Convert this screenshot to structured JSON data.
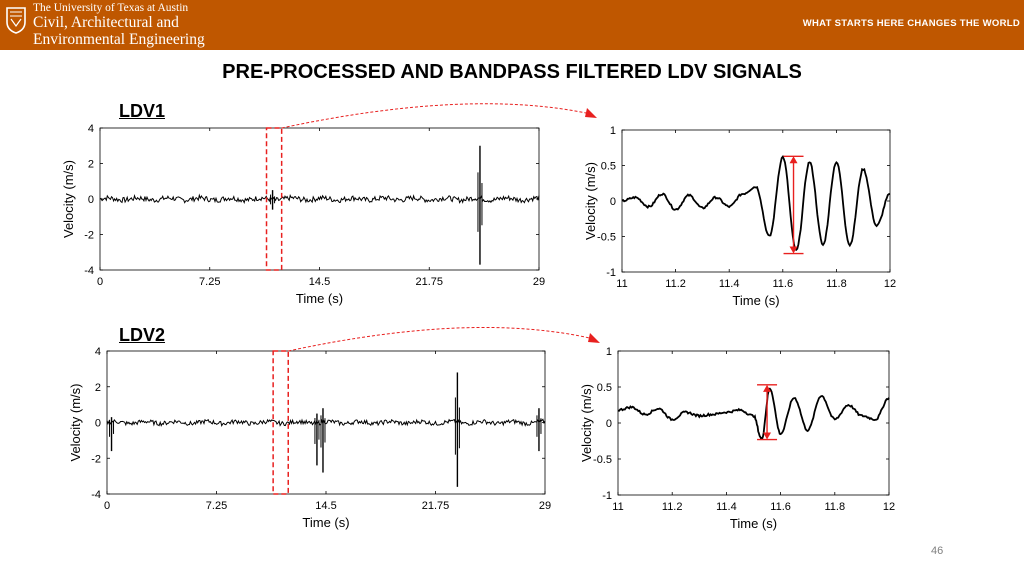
{
  "header": {
    "university": "The University of Texas at Austin",
    "department_line1": "Civil, Architectural and",
    "department_line2": "Environmental Engineering",
    "tagline": "WHAT STARTS HERE CHANGES THE WORLD",
    "logo": "ut-seal-icon",
    "brand_color": "#bf5700"
  },
  "slide": {
    "title": "PRE-PROCESSED AND BANDPASS FILTERED LDV SIGNALS",
    "page_number": "46"
  },
  "colors": {
    "signal": "#000000",
    "highlight": "#e8201f",
    "axis": "#000000"
  },
  "chart_data": [
    {
      "type": "line",
      "panel_label": "LDV1",
      "xlabel": "Time (s)",
      "ylabel": "Velocity (m/s)",
      "xlim": [
        0,
        29
      ],
      "ylim": [
        -4,
        4
      ],
      "x_ticks": [
        "0",
        "7.25",
        "14.5",
        "21.75",
        "29"
      ],
      "y_ticks": [
        "4",
        "2",
        "0",
        "-2",
        "-4"
      ],
      "highlight_window_x": [
        11,
        12
      ],
      "noise_amplitude": 0.15,
      "spikes": [
        {
          "x": 25.1,
          "max": 3.0,
          "min": -3.7
        },
        {
          "x": 11.4,
          "max": 0.5,
          "min": -0.6
        }
      ],
      "grid": false
    },
    {
      "type": "line",
      "panel_label": "LDV1 zoom",
      "xlabel": "Time (s)",
      "ylabel": "Velocity (m/s)",
      "xlim": [
        11,
        12
      ],
      "ylim": [
        -1,
        1
      ],
      "x_ticks": [
        "11",
        "11.2",
        "11.4",
        "11.6",
        "11.8",
        "12"
      ],
      "y_ticks": [
        "1",
        "0.5",
        "0",
        "-0.5",
        "-1"
      ],
      "x": [
        11.0,
        11.05,
        11.1,
        11.15,
        11.2,
        11.25,
        11.3,
        11.35,
        11.4,
        11.45,
        11.5,
        11.55,
        11.6,
        11.65,
        11.7,
        11.75,
        11.8,
        11.85,
        11.9,
        11.95,
        12.0
      ],
      "y": [
        0.0,
        0.05,
        -0.08,
        0.1,
        -0.12,
        0.08,
        -0.1,
        0.05,
        -0.08,
        0.1,
        0.2,
        -0.5,
        0.62,
        -0.7,
        0.55,
        -0.62,
        0.55,
        -0.62,
        0.45,
        -0.35,
        0.1
      ],
      "peak_to_peak_marker": {
        "x": 11.64,
        "top": 0.63,
        "bottom": -0.74
      },
      "grid": false
    },
    {
      "type": "line",
      "panel_label": "LDV2",
      "xlabel": "Time (s)",
      "ylabel": "Velocity (m/s)",
      "xlim": [
        0,
        29
      ],
      "ylim": [
        -4,
        4
      ],
      "x_ticks": [
        "0",
        "7.25",
        "14.5",
        "21.75",
        "29"
      ],
      "y_ticks": [
        "4",
        "2",
        "0",
        "-2",
        "-4"
      ],
      "highlight_window_x": [
        11,
        12
      ],
      "noise_amplitude": 0.12,
      "spikes": [
        {
          "x": 23.2,
          "max": 2.8,
          "min": -3.6
        },
        {
          "x": 13.9,
          "max": 0.5,
          "min": -2.4
        },
        {
          "x": 14.3,
          "max": 0.8,
          "min": -2.8
        },
        {
          "x": 28.6,
          "max": 0.8,
          "min": -1.6
        },
        {
          "x": 0.3,
          "max": 0.3,
          "min": -1.6
        }
      ],
      "grid": false
    },
    {
      "type": "line",
      "panel_label": "LDV2 zoom",
      "xlabel": "Time (s)",
      "ylabel": "Velocity (m/s)",
      "xlim": [
        11,
        12
      ],
      "ylim": [
        -1,
        1
      ],
      "x_ticks": [
        "11",
        "11.2",
        "11.4",
        "11.6",
        "11.8",
        "12"
      ],
      "y_ticks": [
        "1",
        "0.5",
        "0",
        "-0.5",
        "-1"
      ],
      "x": [
        11.0,
        11.05,
        11.1,
        11.15,
        11.2,
        11.25,
        11.3,
        11.35,
        11.4,
        11.45,
        11.5,
        11.53,
        11.56,
        11.6,
        11.65,
        11.7,
        11.75,
        11.8,
        11.85,
        11.9,
        11.95,
        12.0
      ],
      "y": [
        0.18,
        0.22,
        0.12,
        0.2,
        0.05,
        0.15,
        0.1,
        0.12,
        0.15,
        0.18,
        0.1,
        -0.22,
        0.48,
        -0.15,
        0.35,
        -0.1,
        0.38,
        0.05,
        0.25,
        0.1,
        0.05,
        0.35
      ],
      "peak_to_peak_marker": {
        "x": 11.55,
        "top": 0.53,
        "bottom": -0.23
      },
      "grid": false
    }
  ]
}
